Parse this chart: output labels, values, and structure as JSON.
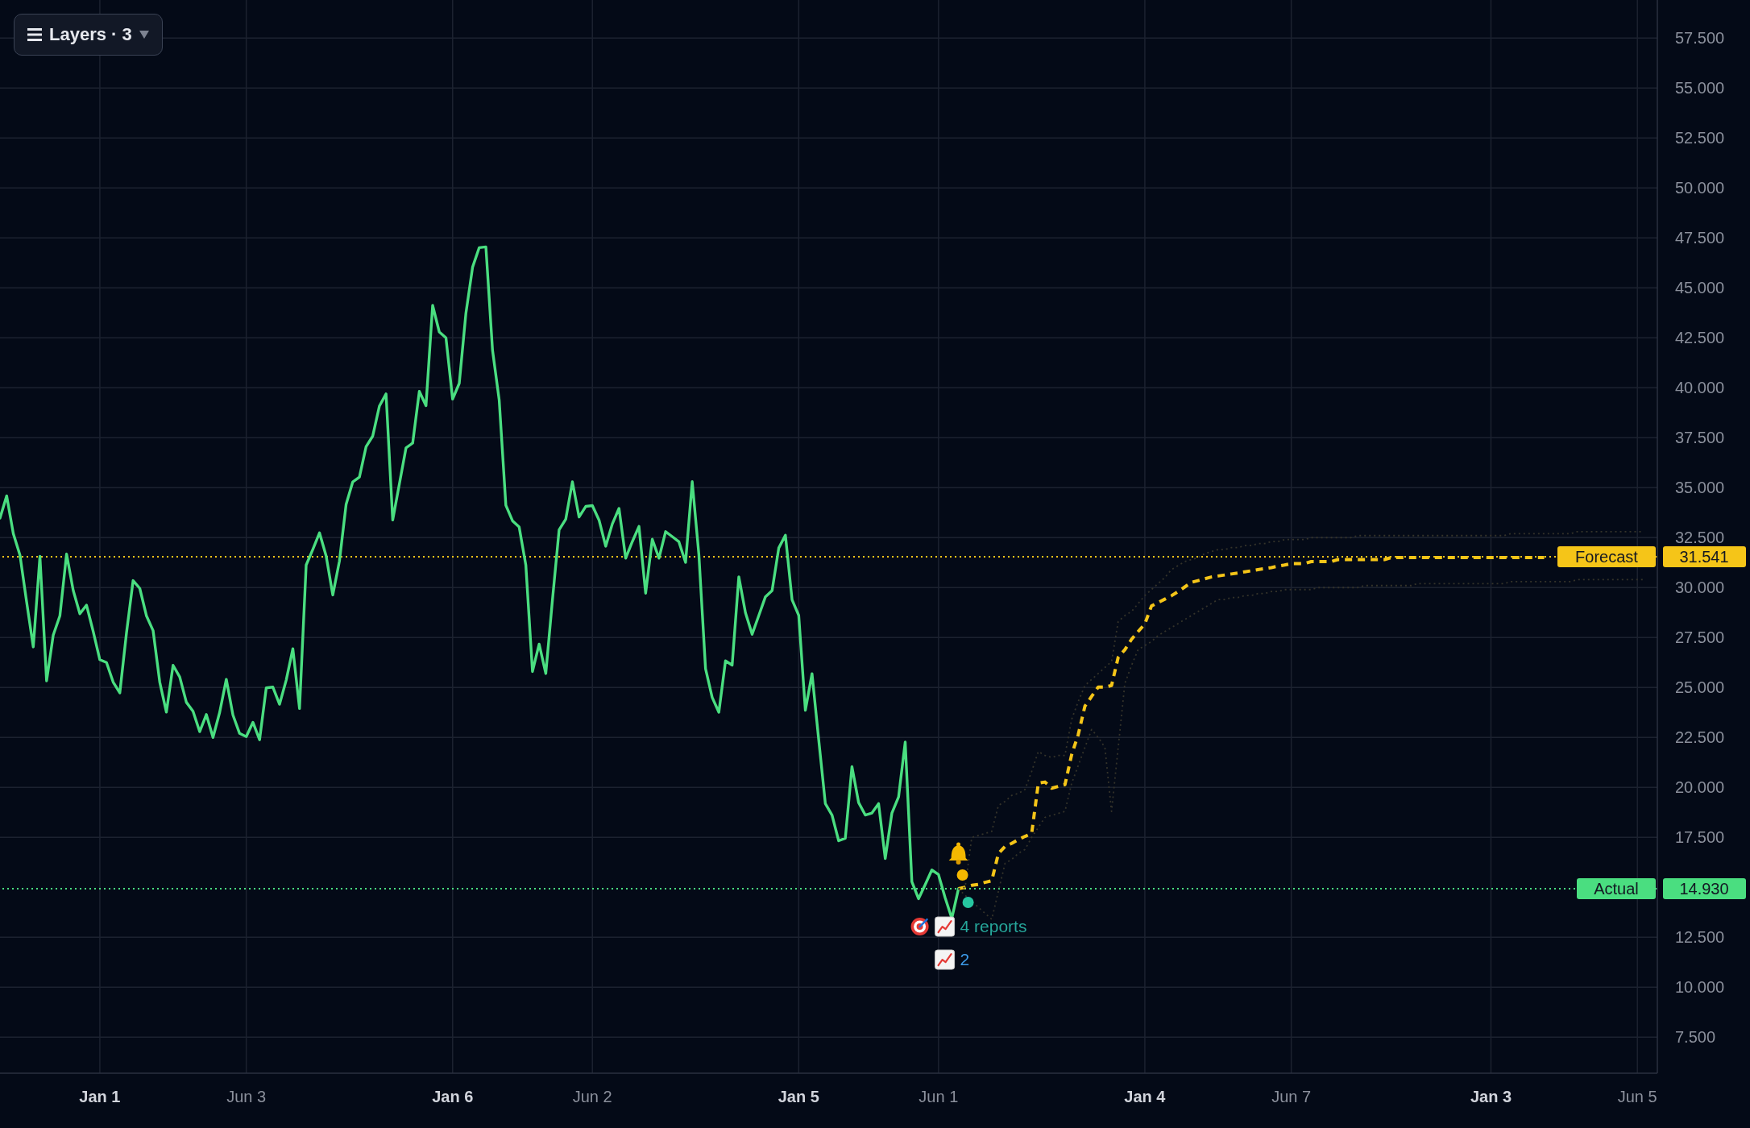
{
  "chart_data": {
    "type": "line",
    "annotations": [
      "Layers · 3",
      "4 reports",
      "2"
    ],
    "categories": [
      null,
      null,
      null,
      null,
      null,
      null,
      null,
      null,
      null,
      null,
      null,
      null,
      null,
      null,
      null,
      "Jan 1",
      null,
      null,
      null,
      null,
      null,
      null,
      null,
      null,
      null,
      null,
      null,
      null,
      null,
      null,
      null,
      null,
      null,
      null,
      null,
      null,
      null,
      "Jun 3",
      null,
      null,
      null,
      null,
      null,
      null,
      null,
      null,
      null,
      null,
      null,
      null,
      null,
      null,
      null,
      null,
      null,
      null,
      null,
      null,
      null,
      null,
      null,
      null,
      null,
      null,
      null,
      null,
      null,
      null,
      "Jan 6",
      null,
      null,
      null,
      null,
      null,
      null,
      null,
      null,
      null,
      null,
      null,
      null,
      null,
      null,
      null,
      null,
      null,
      null,
      null,
      null,
      "Jun 2",
      null,
      null,
      null,
      null,
      null,
      null,
      null,
      null,
      null,
      null,
      null,
      null,
      null,
      null,
      null,
      null,
      null,
      null,
      null,
      null,
      null,
      null,
      null,
      null,
      null,
      null,
      null,
      null,
      null,
      null,
      "Jan 5",
      null,
      null,
      null,
      null,
      null,
      null,
      null,
      null,
      null,
      null,
      null,
      null,
      null,
      null,
      null,
      null,
      null,
      null,
      null,
      null,
      "Jun 1",
      null,
      null,
      null,
      null,
      null,
      null,
      null,
      null,
      null,
      null,
      null,
      null,
      null,
      null,
      null,
      null,
      null,
      null,
      null,
      null,
      null,
      null,
      null,
      null,
      null,
      null,
      null,
      null,
      null,
      null,
      "Jan 4",
      null,
      null,
      null,
      null,
      null,
      null,
      null,
      null,
      null,
      null,
      null,
      null,
      null,
      null,
      null,
      null,
      null,
      null,
      null,
      null,
      null,
      "Jun 7",
      null,
      null,
      null,
      null,
      null,
      null,
      null,
      null,
      null,
      null,
      null,
      null,
      null,
      null,
      null,
      null,
      null,
      null,
      null,
      null,
      null,
      null,
      null,
      null,
      null,
      null,
      null,
      null,
      null,
      "Jan 3",
      null,
      null,
      null,
      null,
      null,
      null,
      null,
      null,
      null,
      null,
      null,
      null,
      null,
      null,
      null,
      null,
      null,
      null,
      null,
      null,
      null,
      "Jun 5",
      null,
      null,
      null
    ],
    "series": [
      {
        "color": "#4ade80",
        "values": [
          33.48,
          34.59,
          32.7,
          31.62,
          29.28,
          27.03,
          31.56,
          25.33,
          27.62,
          28.59,
          31.68,
          29.86,
          28.69,
          29.12,
          27.81,
          26.39,
          26.25,
          25.27,
          24.73,
          27.72,
          30.35,
          29.96,
          28.59,
          27.85,
          25.27,
          23.77,
          26.11,
          25.53,
          24.26,
          23.81,
          22.79,
          23.65,
          22.5,
          23.75,
          25.41,
          23.62,
          22.7,
          22.54,
          23.26,
          22.38,
          24.98,
          25.02,
          24.16,
          25.37,
          26.94,
          23.95,
          31.13,
          31.91,
          32.74,
          31.58,
          29.63,
          31.33,
          34.16,
          35.29,
          35.53,
          37.05,
          37.58,
          39.08,
          39.69,
          33.38,
          35.18,
          36.99,
          37.23,
          39.82,
          39.1,
          44.12,
          42.79,
          42.5,
          39.43,
          40.22,
          43.73,
          46.03,
          47.01,
          47.05,
          41.87,
          39.38,
          34.12,
          33.34,
          33.03,
          31.13,
          25.8,
          27.17,
          25.7,
          29.38,
          32.89,
          33.42,
          35.29,
          33.53,
          34.06,
          34.1,
          33.38,
          32.07,
          33.19,
          33.96,
          31.47,
          32.3,
          33.06,
          29.72,
          32.42,
          31.47,
          32.8,
          32.55,
          32.29,
          31.26,
          35.3,
          31.65,
          25.94,
          24.5,
          23.76,
          26.33,
          26.12,
          30.54,
          28.74,
          27.66,
          28.6,
          29.54,
          29.85,
          31.98,
          32.62,
          29.39,
          28.61,
          23.86,
          25.69,
          22.4,
          19.19,
          18.62,
          17.33,
          17.46,
          21.04,
          19.24,
          18.62,
          18.72,
          19.19,
          16.44,
          18.72,
          19.52,
          22.27,
          15.28,
          14.43,
          15.13,
          15.87,
          15.64,
          14.48,
          13.45,
          14.93,
          null,
          null,
          null,
          null,
          null,
          null,
          null,
          null,
          null,
          null,
          null,
          null,
          null,
          null,
          null,
          null,
          null,
          null,
          null,
          null,
          null,
          null,
          null,
          null,
          null,
          null,
          null,
          null,
          null,
          null,
          null,
          null,
          null,
          null,
          null,
          null,
          null,
          null,
          null,
          null,
          null,
          null,
          null,
          null,
          null,
          null,
          null,
          null,
          null,
          null,
          null,
          null,
          null,
          null,
          null,
          null,
          null,
          null,
          null,
          null,
          null,
          null,
          null,
          null,
          null,
          null,
          null,
          null,
          null,
          null,
          null,
          null,
          null,
          null,
          null,
          null,
          null,
          null,
          null,
          null,
          null,
          null,
          null,
          null,
          null,
          null,
          null,
          null,
          null,
          null,
          null,
          null,
          null,
          null,
          null,
          null,
          null,
          null,
          null,
          null,
          null,
          null,
          null,
          null,
          null
        ]
      },
      {
        "color": "#f5c518",
        "line_style": "dashed",
        "values": [
          null,
          null,
          null,
          null,
          null,
          null,
          null,
          null,
          null,
          null,
          null,
          null,
          null,
          null,
          null,
          null,
          null,
          null,
          null,
          null,
          null,
          null,
          null,
          null,
          null,
          null,
          null,
          null,
          null,
          null,
          null,
          null,
          null,
          null,
          null,
          null,
          null,
          null,
          null,
          null,
          null,
          null,
          null,
          null,
          null,
          null,
          null,
          null,
          null,
          null,
          null,
          null,
          null,
          null,
          null,
          null,
          null,
          null,
          null,
          null,
          null,
          null,
          null,
          null,
          null,
          null,
          null,
          null,
          null,
          null,
          null,
          null,
          null,
          null,
          null,
          null,
          null,
          null,
          null,
          null,
          null,
          null,
          null,
          null,
          null,
          null,
          null,
          null,
          null,
          null,
          null,
          null,
          null,
          null,
          null,
          null,
          null,
          null,
          null,
          null,
          null,
          null,
          null,
          null,
          null,
          null,
          null,
          null,
          null,
          null,
          null,
          null,
          null,
          null,
          null,
          null,
          null,
          null,
          null,
          null,
          null,
          null,
          null,
          null,
          null,
          null,
          null,
          null,
          null,
          null,
          null,
          null,
          null,
          null,
          null,
          null,
          null,
          null,
          null,
          null,
          null,
          null,
          null,
          null,
          14.93,
          15.0,
          15.1,
          15.15,
          15.25,
          15.33,
          16.69,
          17.05,
          17.2,
          17.39,
          17.55,
          17.7,
          20.21,
          20.27,
          19.96,
          20.05,
          20.14,
          21.63,
          22.65,
          24.07,
          24.55,
          25.02,
          25.02,
          25.1,
          26.51,
          26.89,
          27.41,
          27.8,
          28.18,
          29.08,
          29.25,
          29.42,
          29.59,
          29.8,
          30.03,
          30.26,
          30.35,
          30.44,
          30.53,
          30.58,
          30.63,
          30.68,
          30.73,
          30.79,
          30.84,
          30.9,
          30.95,
          31.0,
          31.07,
          31.13,
          31.2,
          31.2,
          31.2,
          31.3,
          31.3,
          31.3,
          31.3,
          31.4,
          31.4,
          31.4,
          31.4,
          31.4,
          31.4,
          31.4,
          31.4,
          31.5,
          31.5,
          31.5,
          31.5,
          31.5,
          31.5,
          31.5,
          31.5,
          31.5,
          31.5,
          31.5,
          31.5,
          31.5,
          31.5,
          31.5,
          31.5,
          31.5,
          31.5,
          31.5,
          31.5,
          31.5,
          31.5,
          31.5,
          31.5,
          null,
          null,
          null,
          null,
          null,
          null,
          null,
          null,
          null,
          null,
          null,
          null,
          null,
          null,
          null,
          null,
          null
        ]
      },
      {
        "color": "#34332a",
        "line_style": "dotted",
        "values": [
          null,
          null,
          null,
          null,
          null,
          null,
          null,
          null,
          null,
          null,
          null,
          null,
          null,
          null,
          null,
          null,
          null,
          null,
          null,
          null,
          null,
          null,
          null,
          null,
          null,
          null,
          null,
          null,
          null,
          null,
          null,
          null,
          null,
          null,
          null,
          null,
          null,
          null,
          null,
          null,
          null,
          null,
          null,
          null,
          null,
          null,
          null,
          null,
          null,
          null,
          null,
          null,
          null,
          null,
          null,
          null,
          null,
          null,
          null,
          null,
          null,
          null,
          null,
          null,
          null,
          null,
          null,
          null,
          null,
          null,
          null,
          null,
          null,
          null,
          null,
          null,
          null,
          null,
          null,
          null,
          null,
          null,
          null,
          null,
          null,
          null,
          null,
          null,
          null,
          null,
          null,
          null,
          null,
          null,
          null,
          null,
          null,
          null,
          null,
          null,
          null,
          null,
          null,
          null,
          null,
          null,
          null,
          null,
          null,
          null,
          null,
          null,
          null,
          null,
          null,
          null,
          null,
          null,
          null,
          null,
          null,
          null,
          null,
          null,
          null,
          null,
          null,
          null,
          null,
          null,
          null,
          null,
          null,
          null,
          null,
          null,
          null,
          null,
          null,
          null,
          null,
          null,
          null,
          null,
          14.93,
          15.0,
          17.5,
          17.6,
          17.7,
          17.8,
          19.1,
          19.3,
          19.6,
          19.7,
          19.9,
          20.8,
          21.8,
          21.6,
          21.5,
          21.6,
          21.6,
          23.4,
          24.3,
          25.1,
          25.4,
          25.7,
          26.0,
          26.3,
          28.3,
          28.6,
          28.8,
          29.2,
          29.6,
          29.9,
          30.2,
          30.5,
          30.9,
          31.1,
          31.3,
          31.4,
          31.5,
          31.7,
          31.8,
          31.9,
          31.9,
          32.0,
          32.0,
          32.1,
          32.1,
          32.2,
          32.2,
          32.3,
          32.3,
          32.4,
          32.4,
          32.4,
          32.4,
          32.5,
          32.5,
          32.5,
          32.5,
          32.5,
          32.5,
          32.5,
          32.6,
          32.6,
          32.6,
          32.6,
          32.6,
          32.6,
          32.6,
          32.6,
          32.6,
          32.6,
          32.6,
          32.6,
          32.6,
          32.6,
          32.6,
          32.6,
          32.6,
          32.6,
          32.6,
          32.6,
          32.6,
          32.6,
          32.6,
          32.7,
          32.7,
          32.7,
          32.7,
          32.7,
          32.7,
          32.7,
          32.7,
          32.7,
          32.7,
          32.8,
          32.8,
          32.8,
          32.8,
          32.8,
          32.8,
          32.8,
          32.8,
          32.8,
          32.8,
          32.8,
          null,
          null
        ]
      },
      {
        "color": "#34332a",
        "line_style": "dotted",
        "values": [
          null,
          null,
          null,
          null,
          null,
          null,
          null,
          null,
          null,
          null,
          null,
          null,
          null,
          null,
          null,
          null,
          null,
          null,
          null,
          null,
          null,
          null,
          null,
          null,
          null,
          null,
          null,
          null,
          null,
          null,
          null,
          null,
          null,
          null,
          null,
          null,
          null,
          null,
          null,
          null,
          null,
          null,
          null,
          null,
          null,
          null,
          null,
          null,
          null,
          null,
          null,
          null,
          null,
          null,
          null,
          null,
          null,
          null,
          null,
          null,
          null,
          null,
          null,
          null,
          null,
          null,
          null,
          null,
          null,
          null,
          null,
          null,
          null,
          null,
          null,
          null,
          null,
          null,
          null,
          null,
          null,
          null,
          null,
          null,
          null,
          null,
          null,
          null,
          null,
          null,
          null,
          null,
          null,
          null,
          null,
          null,
          null,
          null,
          null,
          null,
          null,
          null,
          null,
          null,
          null,
          null,
          null,
          null,
          null,
          null,
          null,
          null,
          null,
          null,
          null,
          null,
          null,
          null,
          null,
          null,
          null,
          null,
          null,
          null,
          null,
          null,
          null,
          null,
          null,
          null,
          null,
          null,
          null,
          null,
          null,
          null,
          null,
          null,
          null,
          null,
          null,
          null,
          null,
          null,
          14.93,
          14.6,
          14.3,
          14.0,
          13.7,
          13.4,
          14.8,
          16.2,
          16.4,
          16.7,
          16.9,
          17.5,
          18.0,
          18.5,
          18.6,
          18.7,
          18.8,
          20.2,
          21.1,
          22.0,
          22.9,
          22.5,
          22.0,
          18.8,
          22.0,
          25.2,
          26.1,
          26.9,
          27.1,
          27.3,
          27.6,
          27.8,
          28.0,
          28.2,
          28.4,
          28.6,
          28.8,
          29.0,
          29.2,
          29.4,
          29.4,
          29.5,
          29.5,
          29.6,
          29.6,
          29.7,
          29.7,
          29.8,
          29.8,
          29.9,
          29.9,
          29.9,
          29.9,
          29.9,
          30.0,
          30.0,
          30.0,
          30.0,
          30.0,
          30.0,
          30.0,
          30.1,
          30.1,
          30.1,
          30.1,
          30.1,
          30.1,
          30.1,
          30.1,
          30.2,
          30.2,
          30.2,
          30.2,
          30.2,
          30.2,
          30.2,
          30.2,
          30.2,
          30.2,
          30.2,
          30.2,
          30.2,
          30.2,
          30.3,
          30.3,
          30.3,
          30.3,
          30.3,
          30.3,
          30.3,
          30.3,
          30.3,
          30.3,
          30.4,
          30.4,
          30.4,
          30.4,
          30.4,
          30.4,
          30.4,
          30.4,
          30.4,
          30.4,
          30.4,
          null,
          null
        ]
      }
    ],
    "ylim": [
      5.7,
      59.4
    ],
    "yticks": [
      {
        "value": 7.5,
        "label": "7.500"
      },
      {
        "value": 10,
        "label": "10.000"
      },
      {
        "value": 12.5,
        "label": "12.500"
      },
      {
        "value": 14.93,
        "label": "14.930"
      },
      {
        "value": 17.5,
        "label": "17.500"
      },
      {
        "value": 20,
        "label": "20.000"
      },
      {
        "value": 22.5,
        "label": "22.500"
      },
      {
        "value": 25,
        "label": "25.000"
      },
      {
        "value": 27.5,
        "label": "27.500"
      },
      {
        "value": 30,
        "label": "30.000"
      },
      {
        "value": 31.541,
        "label": "31.541"
      },
      {
        "value": 32.5,
        "label": "32.500"
      },
      {
        "value": 35,
        "label": "35.000"
      },
      {
        "value": 37.5,
        "label": "37.500"
      },
      {
        "value": 40,
        "label": "40.000"
      },
      {
        "value": 42.5,
        "label": "42.500"
      },
      {
        "value": 45,
        "label": "45.000"
      },
      {
        "value": 47.5,
        "label": "47.500"
      },
      {
        "value": 50,
        "label": "50.000"
      },
      {
        "value": 52.5,
        "label": "52.500"
      },
      {
        "value": 55,
        "label": "55.000"
      },
      {
        "value": 57.5,
        "label": "57.500"
      }
    ],
    "grid": true,
    "ref_lines": [
      {
        "axis": "y",
        "value": 31.541,
        "label": "Forecast",
        "color": "#f5c518",
        "line_style": "dotted"
      },
      {
        "axis": "y",
        "value": 14.93,
        "label": "Actual",
        "color": "#4ade80",
        "line_style": "dotted"
      }
    ]
  }
}
